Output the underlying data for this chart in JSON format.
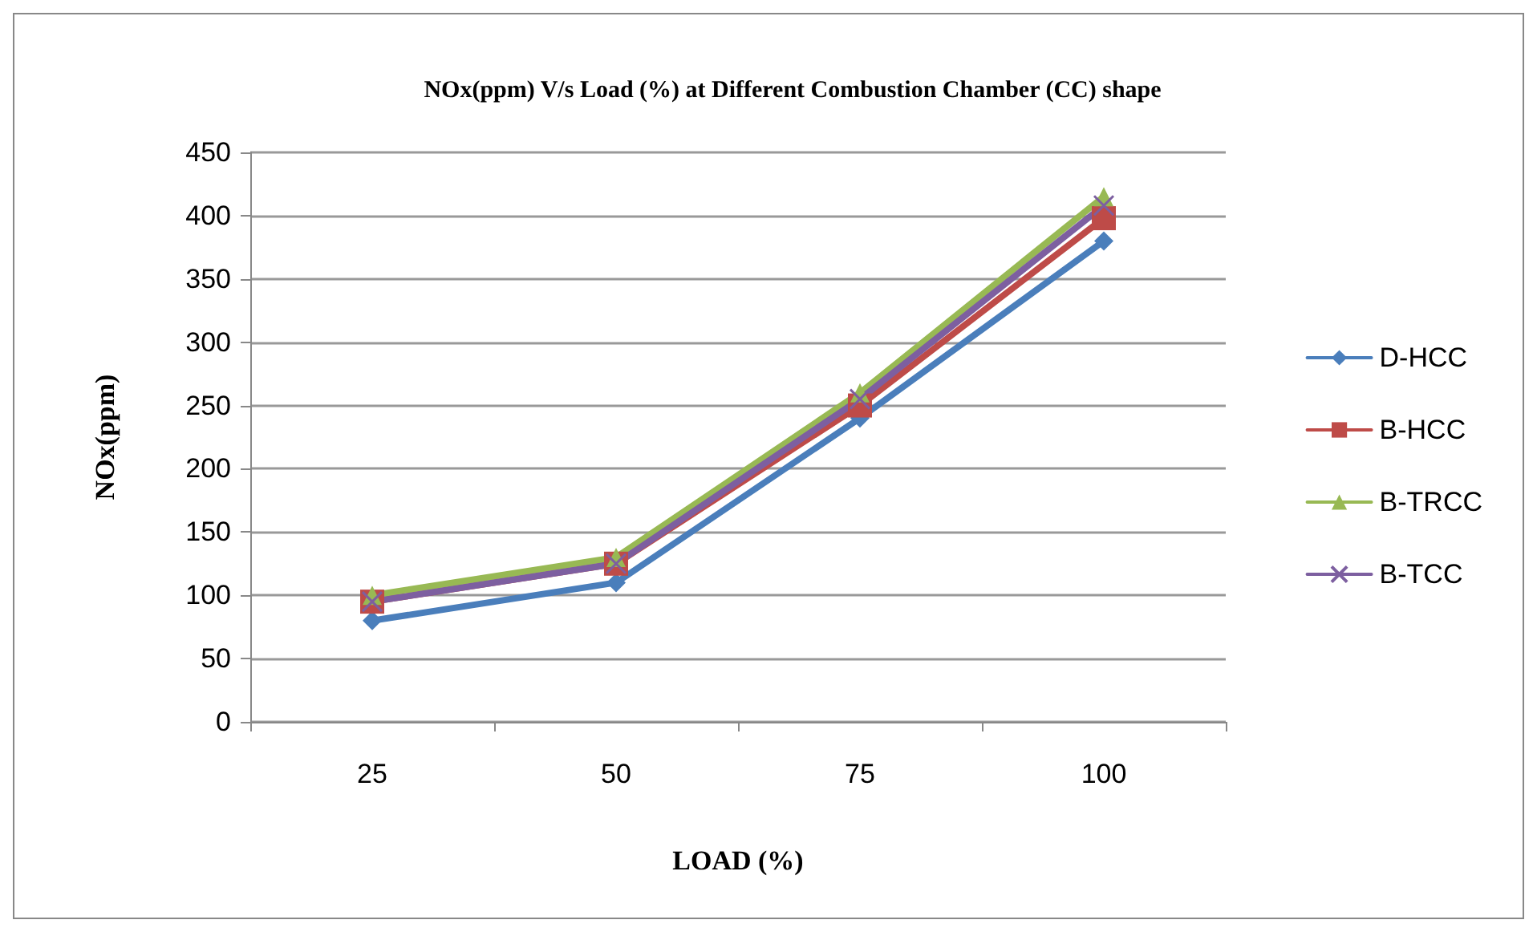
{
  "chart_data": {
    "type": "line",
    "title": "NOx(ppm) V/s Load (%) at Different Combustion Chamber (CC) shape",
    "xlabel": "LOAD (%)",
    "ylabel": "NOx(ppm)",
    "categories": [
      "25",
      "50",
      "75",
      "100"
    ],
    "series": [
      {
        "name": "D-HCC",
        "color": "#4a7ebb",
        "marker": "diamond",
        "values": [
          80,
          110,
          240,
          380
        ]
      },
      {
        "name": "B-HCC",
        "color": "#be4b48",
        "marker": "square",
        "values": [
          95,
          125,
          250,
          398
        ]
      },
      {
        "name": "B-TRCC",
        "color": "#98b954",
        "marker": "triangle",
        "values": [
          100,
          130,
          260,
          415
        ]
      },
      {
        "name": "B-TCC",
        "color": "#7d5fa0",
        "marker": "cross",
        "values": [
          95,
          125,
          255,
          408
        ]
      }
    ],
    "ylim": [
      0,
      450
    ],
    "yticks": [
      0,
      50,
      100,
      150,
      200,
      250,
      300,
      350,
      400,
      450
    ],
    "grid": "y",
    "legend": "right"
  }
}
